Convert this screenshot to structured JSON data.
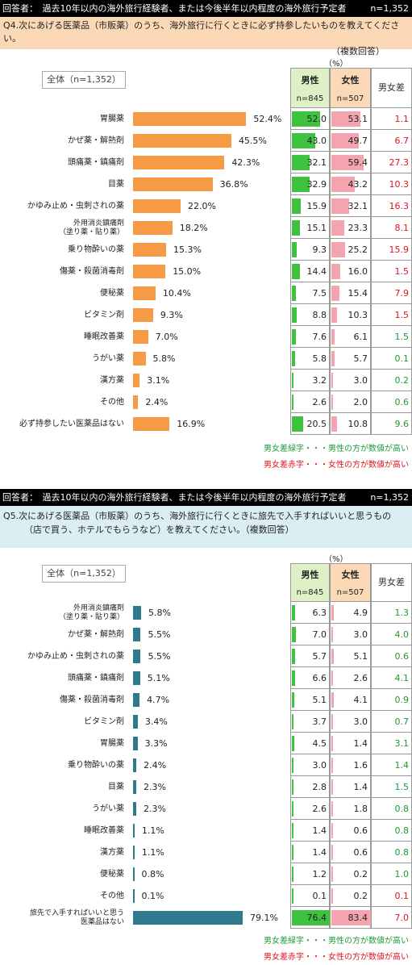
{
  "chart_data": [
    {
      "type": "bar",
      "header": "回答者：　過去10年以内の海外旅行経験者、または今後半年以内程度の海外旅行予定者",
      "header_n": "n=1,352",
      "question_line1": "Q4.次にあげる医薬品（市販薬）のうち、海外旅行に行くときに必ず持参したいものを教えてください。",
      "question_line2": "（複数回答）",
      "total_label": "全体（n=1,352）",
      "unit": "（%）",
      "col_male": "男性",
      "col_female": "女性",
      "col_diff": "男女差",
      "n_male": "n=845",
      "n_female": "n=507",
      "categories": [
        "胃腸薬",
        "かぜ薬・解熱剤",
        "頭痛薬・鎮痛剤",
        "目薬",
        "かゆみ止め・虫刺されの薬",
        "外用消炎鎮痛剤\n（塗り薬・貼り薬）",
        "乗り物酔いの薬",
        "傷薬・殺菌消毒剤",
        "便秘薬",
        "ビタミン剤",
        "睡眠改善薬",
        "うがい薬",
        "漢方薬",
        "その他",
        "必ず持参したい医薬品はない"
      ],
      "total_display": [
        "52.4%",
        "45.5%",
        "42.3%",
        "36.8%",
        "22.0%",
        "18.2%",
        "15.3%",
        "15.0%",
        "10.4%",
        "9.3%",
        "7.0%",
        "5.8%",
        "3.1%",
        "2.4%",
        "16.9%"
      ],
      "male_display": [
        "52.0",
        "43.0",
        "32.1",
        "32.9",
        "15.9",
        "15.1",
        "9.3",
        "14.4",
        "7.5",
        "8.8",
        "7.6",
        "5.8",
        "3.2",
        "2.6",
        "20.5"
      ],
      "female_display": [
        "53.1",
        "49.7",
        "59.4",
        "43.2",
        "32.1",
        "23.3",
        "25.2",
        "16.0",
        "15.4",
        "10.3",
        "6.1",
        "5.7",
        "3.0",
        "2.0",
        "10.8"
      ],
      "diff_display": [
        "1.1",
        "6.7",
        "27.3",
        "10.3",
        "16.3",
        "8.1",
        "15.9",
        "1.5",
        "7.9",
        "1.5",
        "1.5",
        "0.1",
        "0.2",
        "0.6",
        "9.6"
      ],
      "diff_color": [
        "r",
        "r",
        "r",
        "r",
        "r",
        "r",
        "r",
        "r",
        "r",
        "r",
        "g",
        "g",
        "g",
        "g",
        "g"
      ],
      "note_green": "男女差緑字・・・男性の方が数値が高い",
      "note_red": "男女差赤字・・・女性の方が数値が高い",
      "bar_color": "#f79a46",
      "male_color": "#3ec240",
      "female_color": "#f4a4ae"
    },
    {
      "type": "bar",
      "header": "回答者：　過去10年以内の海外旅行経験者、または今後半年以内程度の海外旅行予定者",
      "header_n": "n=1,352",
      "question_line1": "Q5.次にあげる医薬品（市販薬）のうち、海外旅行に行くときに旅先で入手すればいいと思うもの",
      "question_line2": "（店で買う、ホテルでもらうなど）を教えてください。（複数回答）",
      "total_label": "全体（n=1,352）",
      "unit": "（%）",
      "col_male": "男性",
      "col_female": "女性",
      "col_diff": "男女差",
      "n_male": "n=845",
      "n_female": "n=507",
      "categories": [
        "外用消炎鎮痛剤\n（塗り薬・貼り薬）",
        "かぜ薬・解熱剤",
        "かゆみ止め・虫刺されの薬",
        "頭痛薬・鎮痛剤",
        "傷薬・殺菌消毒剤",
        "ビタミン剤",
        "胃腸薬",
        "乗り物酔いの薬",
        "目薬",
        "うがい薬",
        "睡眠改善薬",
        "漢方薬",
        "便秘薬",
        "その他",
        "旅先で入手すればいいと思う\n医薬品はない"
      ],
      "total_display": [
        "5.8%",
        "5.5%",
        "5.5%",
        "5.1%",
        "4.7%",
        "3.4%",
        "3.3%",
        "2.4%",
        "2.3%",
        "2.3%",
        "1.1%",
        "1.1%",
        "0.8%",
        "0.1%",
        "79.1%"
      ],
      "male_display": [
        "6.3",
        "7.0",
        "5.7",
        "6.6",
        "5.1",
        "3.7",
        "4.5",
        "3.0",
        "2.8",
        "2.6",
        "1.4",
        "1.4",
        "1.2",
        "0.1",
        "76.4"
      ],
      "female_display": [
        "4.9",
        "3.0",
        "5.1",
        "2.6",
        "4.1",
        "3.0",
        "1.4",
        "1.6",
        "1.4",
        "1.8",
        "0.6",
        "0.6",
        "0.2",
        "0.2",
        "83.4"
      ],
      "diff_display": [
        "1.3",
        "4.0",
        "0.6",
        "4.1",
        "0.9",
        "0.7",
        "3.1",
        "1.4",
        "1.5",
        "0.8",
        "0.8",
        "0.8",
        "1.0",
        "0.1",
        "7.0"
      ],
      "diff_color": [
        "g",
        "g",
        "g",
        "g",
        "g",
        "g",
        "g",
        "g",
        "g",
        "g",
        "g",
        "g",
        "g",
        "r",
        "r"
      ],
      "note_green": "男女差緑字・・・男性の方が数値が高い",
      "note_red": "男女差赤字・・・女性の方が数値が高い",
      "bar_color": "#2f7a8c",
      "male_color": "#3ec240",
      "female_color": "#f4a4ae"
    }
  ]
}
